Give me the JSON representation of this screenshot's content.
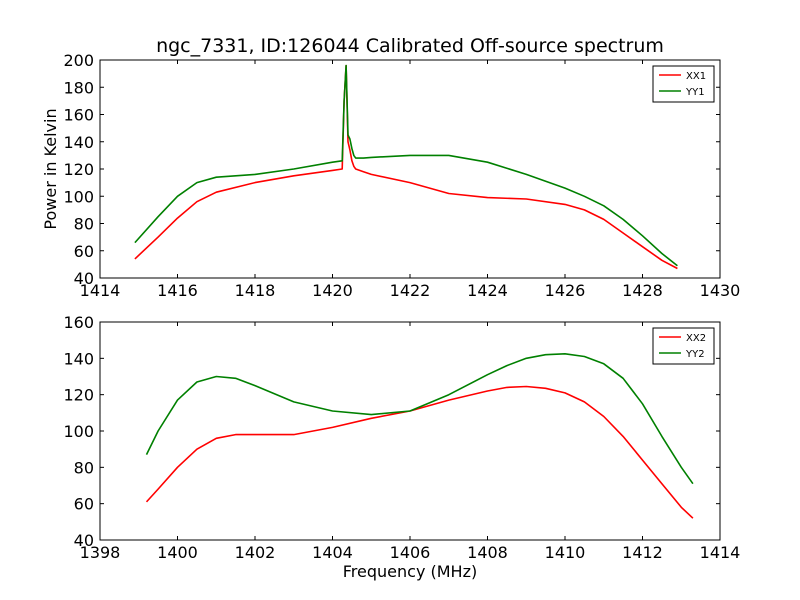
{
  "chart_data": [
    {
      "type": "line",
      "title": "ngc_7331, ID:126044 Calibrated Off-source spectrum",
      "xlabel": "",
      "ylabel": "Power in Kelvin",
      "xlim": [
        1414,
        1430
      ],
      "ylim": [
        40,
        200
      ],
      "xticks": [
        1414,
        1416,
        1418,
        1420,
        1422,
        1424,
        1426,
        1428,
        1430
      ],
      "yticks": [
        40,
        60,
        80,
        100,
        120,
        140,
        160,
        180,
        200
      ],
      "grid": false,
      "legend_position": "top-right",
      "series": [
        {
          "name": "XX1",
          "color": "#ff0000",
          "x": [
            1414.9,
            1415.5,
            1416,
            1416.5,
            1417,
            1418,
            1419,
            1420,
            1420.25,
            1420.3,
            1420.35,
            1420.4,
            1420.45,
            1420.5,
            1420.55,
            1420.6,
            1420.8,
            1421,
            1422,
            1423,
            1424,
            1425,
            1426,
            1426.5,
            1427,
            1427.5,
            1428,
            1428.5,
            1428.9
          ],
          "y": [
            54,
            70,
            84,
            96,
            103,
            110,
            115,
            119,
            120,
            170,
            196,
            140,
            134,
            126,
            122,
            120,
            118,
            116,
            110,
            102,
            99,
            98,
            94,
            90,
            83,
            73,
            63,
            53,
            47
          ]
        },
        {
          "name": "YY1",
          "color": "#008000",
          "x": [
            1414.9,
            1415.5,
            1416,
            1416.5,
            1417,
            1418,
            1419,
            1420,
            1420.25,
            1420.3,
            1420.35,
            1420.4,
            1420.45,
            1420.5,
            1420.55,
            1420.6,
            1420.8,
            1421,
            1422,
            1423,
            1424,
            1425,
            1426,
            1426.5,
            1427,
            1427.5,
            1428,
            1428.5,
            1428.9
          ],
          "y": [
            66,
            85,
            100,
            110,
            114,
            116,
            120,
            125,
            126,
            170,
            196,
            145,
            142,
            135,
            130,
            128,
            128,
            128.5,
            130,
            130,
            125,
            116,
            106,
            100,
            93,
            83,
            71,
            58,
            49
          ]
        }
      ]
    },
    {
      "type": "line",
      "title": "",
      "xlabel": "Frequency (MHz)",
      "ylabel": "",
      "xlim": [
        1398,
        1414
      ],
      "ylim": [
        40,
        160
      ],
      "xticks": [
        1398,
        1400,
        1402,
        1404,
        1406,
        1408,
        1410,
        1412,
        1414
      ],
      "yticks": [
        40,
        60,
        80,
        100,
        120,
        140,
        160
      ],
      "grid": false,
      "legend_position": "top-right",
      "series": [
        {
          "name": "XX2",
          "color": "#ff0000",
          "x": [
            1399.2,
            1399.5,
            1400,
            1400.5,
            1401,
            1401.5,
            1402,
            1403,
            1404,
            1405,
            1406,
            1407,
            1408,
            1408.5,
            1409,
            1409.5,
            1410,
            1410.5,
            1411,
            1411.5,
            1412,
            1412.5,
            1413,
            1413.3
          ],
          "y": [
            61,
            68,
            80,
            90,
            96,
            98,
            98,
            98,
            102,
            107,
            111,
            117,
            122,
            124,
            124.5,
            123.5,
            121,
            116,
            108,
            97,
            84,
            71,
            58,
            52
          ]
        },
        {
          "name": "YY2",
          "color": "#008000",
          "x": [
            1399.2,
            1399.5,
            1400,
            1400.5,
            1401,
            1401.5,
            1402,
            1403,
            1404,
            1405,
            1406,
            1407,
            1408,
            1408.5,
            1409,
            1409.5,
            1410,
            1410.5,
            1411,
            1411.5,
            1412,
            1412.5,
            1413,
            1413.3
          ],
          "y": [
            87,
            100,
            117,
            127,
            130,
            129,
            125,
            116,
            111,
            109,
            111,
            120,
            131,
            136,
            140,
            142,
            142.5,
            141,
            137,
            129,
            115,
            97,
            80,
            71
          ]
        }
      ]
    }
  ]
}
